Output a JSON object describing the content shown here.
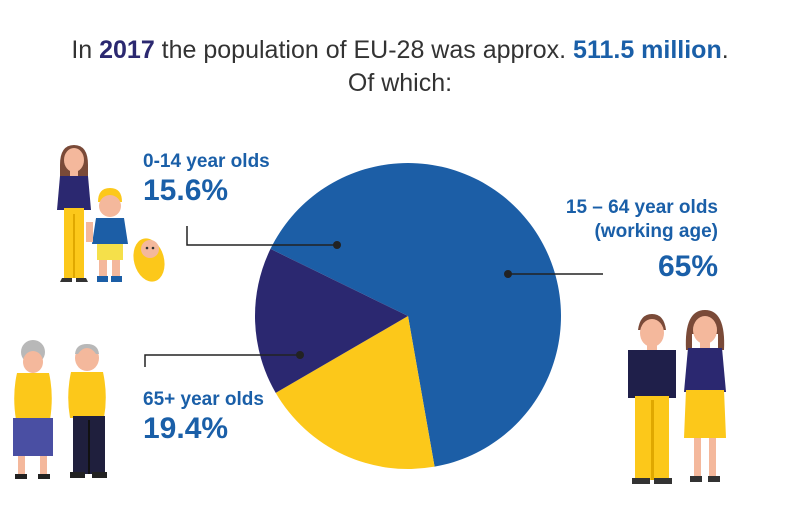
{
  "headline": {
    "line1_prefix": "In ",
    "year": "2017",
    "line1_middle": " the population of EU-28 was approx. ",
    "population": "511.5 million",
    "line1_suffix": ".",
    "line2": "Of which:"
  },
  "colors": {
    "working": "#1c5ea6",
    "young": "#2b2870",
    "old": "#fcc81a",
    "label": "#1a5fa8",
    "year": "#2b2870",
    "leader": "#222222"
  },
  "chart_data": {
    "type": "pie",
    "title": "",
    "slices": [
      {
        "label": "15 – 64 year olds (working age)",
        "value": 65,
        "display": "65%",
        "color": "#1c5ea6"
      },
      {
        "label": "65+ year olds",
        "value": 19.4,
        "display": "19.4%",
        "color": "#fcc81a"
      },
      {
        "label": "0-14 year olds",
        "value": 15.6,
        "display": "15.6%",
        "color": "#2b2870"
      }
    ]
  },
  "labels": {
    "young": {
      "name": "0-14 year olds",
      "pct": "15.6%"
    },
    "working": {
      "name1": "15 – 64 year olds",
      "name2": "(working age)",
      "pct": "65%"
    },
    "old": {
      "name": "65+ year olds",
      "pct": "19.4%"
    }
  },
  "illustrations": [
    {
      "name": "woman-child-baby-illustration"
    },
    {
      "name": "elderly-couple-illustration"
    },
    {
      "name": "adult-couple-illustration"
    }
  ]
}
